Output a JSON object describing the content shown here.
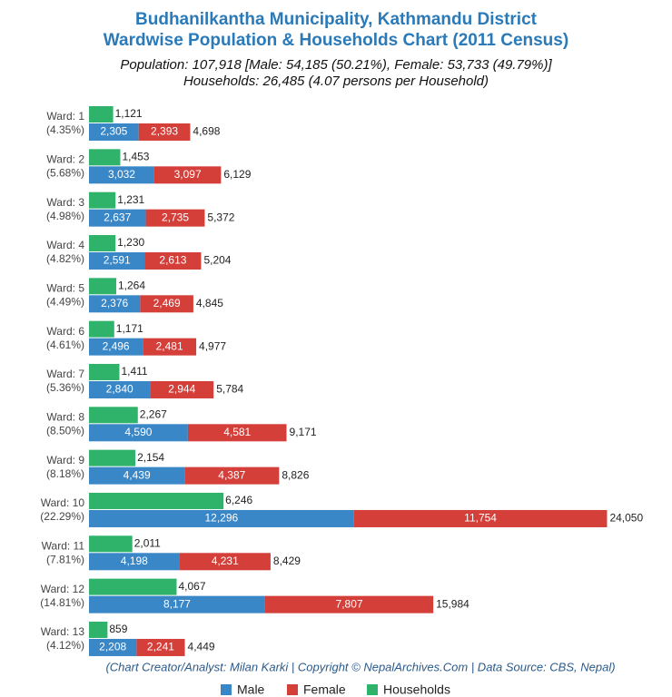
{
  "chart_data": {
    "type": "bar",
    "title": "Budhanilkantha Municipality, Kathmandu District",
    "title_line2": "Wardwise Population & Households Chart (2011 Census)",
    "subtitle": "Population: 107,918 [Male: 54,185 (50.21%), Female: 53,733 (49.79%)]",
    "subtitle_line2": "Households: 26,485 (4.07 persons per Household)",
    "footer": "(Chart Creator/Analyst: Milan Karki | Copyright © NepalArchives.Com | Data Source: CBS, Nepal)",
    "categories": [
      "Ward: 1",
      "Ward: 2",
      "Ward: 3",
      "Ward: 4",
      "Ward: 5",
      "Ward: 6",
      "Ward: 7",
      "Ward: 8",
      "Ward: 9",
      "Ward: 10",
      "Ward: 11",
      "Ward: 12",
      "Ward: 13"
    ],
    "category_notes": [
      "(4.35%)",
      "(5.68%)",
      "(4.98%)",
      "(4.82%)",
      "(4.49%)",
      "(4.61%)",
      "(5.36%)",
      "(8.50%)",
      "(8.18%)",
      "(22.29%)",
      "(7.81%)",
      "(14.81%)",
      "(4.12%)"
    ],
    "xlim": [
      0,
      25000
    ],
    "series": [
      {
        "name": "Male",
        "color": "#3a87c8",
        "values": [
          2305,
          3032,
          2637,
          2591,
          2376,
          2496,
          2840,
          4590,
          4439,
          12296,
          4198,
          8177,
          2208
        ],
        "value_labels": [
          "2,305",
          "3,032",
          "2,637",
          "2,591",
          "2,376",
          "2,496",
          "2,840",
          "4,590",
          "4,439",
          "12,296",
          "4,198",
          "8,177",
          "2,208"
        ]
      },
      {
        "name": "Female",
        "color": "#d43f3a",
        "values": [
          2393,
          3097,
          2735,
          2613,
          2469,
          2481,
          2944,
          4581,
          4387,
          11754,
          4231,
          7807,
          2241
        ],
        "value_labels": [
          "2,393",
          "3,097",
          "2,735",
          "2,613",
          "2,469",
          "2,481",
          "2,944",
          "4,581",
          "4,387",
          "11,754",
          "4,231",
          "7,807",
          "2,241"
        ]
      },
      {
        "name": "Households",
        "color": "#2fb36a",
        "values": [
          1121,
          1453,
          1231,
          1230,
          1264,
          1171,
          1411,
          2267,
          2154,
          6246,
          2011,
          4067,
          859
        ],
        "value_labels": [
          "1,121",
          "1,453",
          "1,231",
          "1,230",
          "1,264",
          "1,171",
          "1,411",
          "2,267",
          "2,154",
          "6,246",
          "2,011",
          "4,067",
          "859"
        ]
      }
    ],
    "totals": [
      4698,
      6129,
      5372,
      5204,
      4845,
      4977,
      5784,
      9171,
      8826,
      24050,
      8429,
      15984,
      4449
    ],
    "total_labels": [
      "4,698",
      "6,129",
      "5,372",
      "5,204",
      "4,845",
      "4,977",
      "5,784",
      "9,171",
      "8,826",
      "24,050",
      "8,429",
      "15,984",
      "4,449"
    ]
  }
}
